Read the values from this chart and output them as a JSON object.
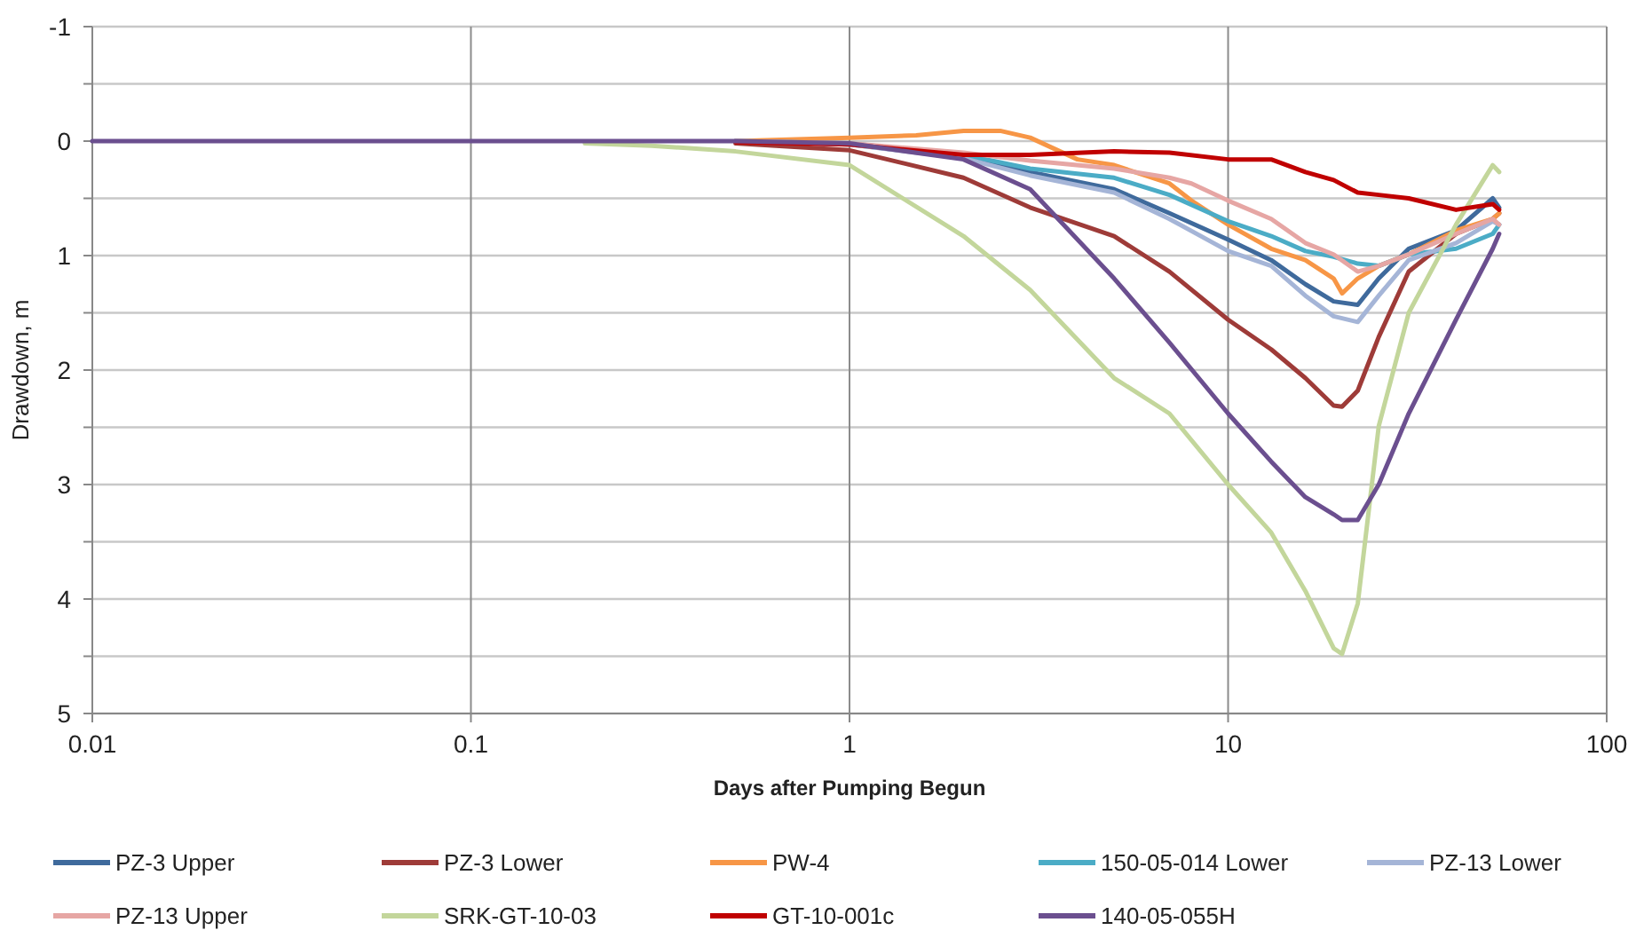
{
  "chart_data": {
    "type": "line",
    "xlabel": "Days after Pumping Begun",
    "ylabel": "Drawdown, m",
    "log": "x",
    "xlim": [
      0.01,
      100
    ],
    "xticks": [
      0.01,
      0.1,
      1,
      10,
      100
    ],
    "ylim": [
      5,
      -1
    ],
    "yticks": [
      -1,
      {
        "value": -0.5,
        "label": null
      },
      0,
      {
        "value": 0.5,
        "label": null
      },
      1,
      {
        "value": 1.5,
        "label": null
      },
      2,
      {
        "value": 2.5,
        "label": null
      },
      3,
      {
        "value": 3.5,
        "label": null
      },
      4,
      {
        "value": 4.5,
        "label": null
      },
      5
    ],
    "grid": true,
    "legend": "bottom",
    "line_style": "solid",
    "series": [
      {
        "name": "PZ-3 Upper",
        "color": "#3f6a9c",
        "x": [
          0.5,
          1,
          2,
          3,
          5,
          7,
          10,
          13,
          16,
          19,
          22,
          25,
          30,
          40,
          50,
          52
        ],
        "values": [
          0,
          0.03,
          0.14,
          0.27,
          0.42,
          0.63,
          0.86,
          1.04,
          1.25,
          1.4,
          1.43,
          1.2,
          0.94,
          0.78,
          0.5,
          0.58
        ]
      },
      {
        "name": "PZ-3 Lower",
        "color": "#9e3b38",
        "x": [
          0.5,
          1,
          2,
          3,
          5,
          7,
          10,
          13,
          16,
          19,
          20,
          22,
          25,
          30,
          40,
          50,
          52
        ],
        "values": [
          0.02,
          0.08,
          0.32,
          0.58,
          0.83,
          1.14,
          1.56,
          1.82,
          2.07,
          2.31,
          2.32,
          2.18,
          1.71,
          1.14,
          0.81,
          0.68,
          0.63
        ]
      },
      {
        "name": "PW-4",
        "color": "#f79646",
        "x": [
          0.5,
          1,
          1.5,
          2,
          2.5,
          3,
          4,
          5,
          7,
          8,
          10,
          13,
          16,
          19,
          20,
          22,
          25,
          30,
          40,
          50,
          52
        ],
        "values": [
          0,
          -0.03,
          -0.05,
          -0.09,
          -0.09,
          -0.03,
          0.16,
          0.21,
          0.37,
          0.52,
          0.73,
          0.94,
          1.04,
          1.2,
          1.33,
          1.2,
          1.09,
          0.99,
          0.78,
          0.68,
          0.63
        ]
      },
      {
        "name": "150-05-014 Lower",
        "color": "#4bacc6",
        "x": [
          0.5,
          1,
          2,
          3,
          5,
          7,
          10,
          13,
          16,
          19,
          22,
          25,
          30,
          40,
          50,
          52
        ],
        "values": [
          0,
          0.02,
          0.12,
          0.24,
          0.32,
          0.47,
          0.7,
          0.83,
          0.96,
          1.01,
          1.07,
          1.09,
          0.99,
          0.94,
          0.81,
          0.73
        ]
      },
      {
        "name": "PZ-13 Lower",
        "color": "#a5b5d7",
        "x": [
          0.5,
          1,
          2,
          3,
          5,
          7,
          10,
          13,
          16,
          19,
          22,
          25,
          30,
          40,
          50,
          52
        ],
        "values": [
          0,
          0.03,
          0.15,
          0.3,
          0.45,
          0.68,
          0.96,
          1.09,
          1.35,
          1.53,
          1.58,
          1.35,
          1.04,
          0.89,
          0.7,
          0.73
        ]
      },
      {
        "name": "PZ-13 Upper",
        "color": "#e6a6a4",
        "x": [
          0.5,
          1,
          2,
          3,
          5,
          7,
          8,
          10,
          13,
          16,
          19,
          22,
          25,
          30,
          40,
          50,
          52
        ],
        "values": [
          0,
          0.02,
          0.1,
          0.17,
          0.24,
          0.32,
          0.37,
          0.52,
          0.68,
          0.89,
          0.99,
          1.14,
          1.09,
          0.99,
          0.81,
          0.68,
          0.73
        ]
      },
      {
        "name": "SRK-GT-10-03",
        "color": "#c3d69b",
        "x": [
          0.2,
          0.3,
          0.5,
          1,
          2,
          3,
          5,
          7,
          10,
          13,
          16,
          19,
          20,
          22,
          25,
          30,
          40,
          50,
          52
        ],
        "values": [
          0.02,
          0.04,
          0.09,
          0.21,
          0.83,
          1.3,
          2.07,
          2.38,
          3.0,
          3.42,
          3.93,
          4.43,
          4.48,
          4.04,
          2.49,
          1.5,
          0.73,
          0.21,
          0.27
        ]
      },
      {
        "name": "GT-10-001c",
        "color": "#c00000",
        "x": [
          0.5,
          1,
          2,
          3,
          5,
          7,
          10,
          13,
          16,
          19,
          22,
          25,
          30,
          40,
          50,
          52
        ],
        "values": [
          0.01,
          0.03,
          0.12,
          0.12,
          0.09,
          0.1,
          0.16,
          0.16,
          0.27,
          0.34,
          0.45,
          0.47,
          0.5,
          0.6,
          0.55,
          0.6
        ]
      },
      {
        "name": "140-05-055H",
        "color": "#6b4f8f",
        "x": [
          0.01,
          0.1,
          0.5,
          1,
          2,
          3,
          5,
          7,
          10,
          13,
          16,
          19,
          20,
          22,
          25,
          30,
          40,
          50,
          52
        ],
        "values": [
          0,
          0,
          0,
          0.02,
          0.16,
          0.42,
          1.2,
          1.76,
          2.38,
          2.8,
          3.11,
          3.26,
          3.31,
          3.31,
          3.0,
          2.38,
          1.56,
          0.94,
          0.81
        ]
      }
    ]
  }
}
